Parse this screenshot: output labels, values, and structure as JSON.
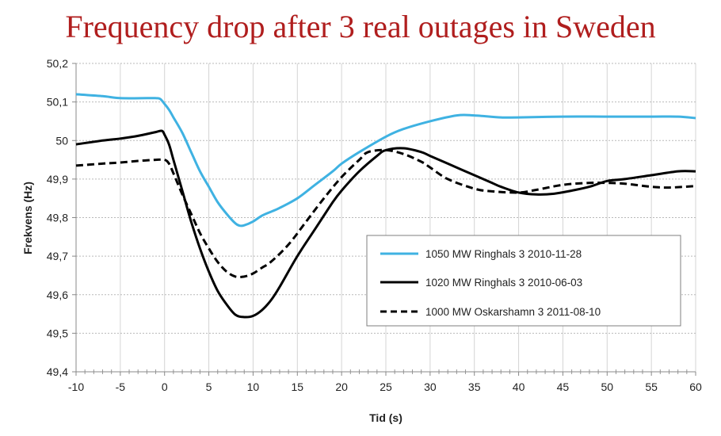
{
  "chart_data": {
    "type": "line",
    "title": "Frequency drop after 3 real outages in Sweden",
    "title_color": "#b01e1e",
    "xlabel": "Tid (s)",
    "ylabel": "Frekvens (Hz)",
    "xlim": [
      -10,
      60
    ],
    "ylim": [
      49.4,
      50.2
    ],
    "x_ticks": [
      -10,
      -5,
      0,
      5,
      10,
      15,
      20,
      25,
      30,
      35,
      40,
      45,
      50,
      55,
      60
    ],
    "x_tick_labels": [
      "-10",
      "-5",
      "0",
      "5",
      "10",
      "15",
      "20",
      "25",
      "30",
      "35",
      "40",
      "45",
      "50",
      "55",
      "60"
    ],
    "y_ticks": [
      49.4,
      49.5,
      49.6,
      49.7,
      49.8,
      49.9,
      50.0,
      50.1,
      50.2
    ],
    "y_tick_labels": [
      "49,4",
      "49,5",
      "49,6",
      "49,7",
      "49,8",
      "49,9",
      "50",
      "50,1",
      "50,2"
    ],
    "grid": true,
    "legend_position": "lower-right",
    "series": [
      {
        "name": "1050 MW Ringhals 3 2010-11-28",
        "color": "#3fb2e2",
        "dash": "solid",
        "points": [
          [
            -10,
            50.12
          ],
          [
            -7,
            50.115
          ],
          [
            -5,
            50.11
          ],
          [
            -2,
            50.11
          ],
          [
            -1,
            50.11
          ],
          [
            -0.5,
            50.108
          ],
          [
            0,
            50.095
          ],
          [
            0.5,
            50.08
          ],
          [
            1,
            50.06
          ],
          [
            2,
            50.02
          ],
          [
            3,
            49.97
          ],
          [
            4,
            49.92
          ],
          [
            5,
            49.88
          ],
          [
            6,
            49.84
          ],
          [
            7,
            49.81
          ],
          [
            8,
            49.785
          ],
          [
            8.5,
            49.779
          ],
          [
            9,
            49.78
          ],
          [
            10,
            49.79
          ],
          [
            11,
            49.805
          ],
          [
            12,
            49.815
          ],
          [
            13,
            49.825
          ],
          [
            15,
            49.85
          ],
          [
            17,
            49.885
          ],
          [
            19,
            49.92
          ],
          [
            20,
            49.94
          ],
          [
            22,
            49.97
          ],
          [
            25,
            50.01
          ],
          [
            27,
            50.03
          ],
          [
            30,
            50.05
          ],
          [
            33,
            50.065
          ],
          [
            35,
            50.065
          ],
          [
            38,
            50.06
          ],
          [
            40,
            50.06
          ],
          [
            45,
            50.062
          ],
          [
            50,
            50.062
          ],
          [
            55,
            50.062
          ],
          [
            58,
            50.062
          ],
          [
            60,
            50.058
          ]
        ]
      },
      {
        "name": "1020 MW Ringhals 3 2010-06-03",
        "color": "#000000",
        "dash": "solid",
        "points": [
          [
            -10,
            49.99
          ],
          [
            -7,
            50.0
          ],
          [
            -5,
            50.005
          ],
          [
            -3,
            50.012
          ],
          [
            -1,
            50.022
          ],
          [
            -0.3,
            50.025
          ],
          [
            0,
            50.015
          ],
          [
            0.5,
            49.99
          ],
          [
            1,
            49.95
          ],
          [
            2,
            49.87
          ],
          [
            3,
            49.79
          ],
          [
            4,
            49.72
          ],
          [
            5,
            49.66
          ],
          [
            6,
            49.61
          ],
          [
            7,
            49.575
          ],
          [
            8,
            49.548
          ],
          [
            9,
            49.542
          ],
          [
            10,
            49.545
          ],
          [
            11,
            49.56
          ],
          [
            12,
            49.585
          ],
          [
            13,
            49.62
          ],
          [
            15,
            49.7
          ],
          [
            17,
            49.77
          ],
          [
            19,
            49.84
          ],
          [
            20,
            49.87
          ],
          [
            22,
            49.92
          ],
          [
            24,
            49.96
          ],
          [
            25,
            49.975
          ],
          [
            27,
            49.98
          ],
          [
            29,
            49.97
          ],
          [
            30,
            49.96
          ],
          [
            32,
            49.94
          ],
          [
            35,
            49.91
          ],
          [
            37,
            49.89
          ],
          [
            38,
            49.88
          ],
          [
            40,
            49.865
          ],
          [
            42,
            49.86
          ],
          [
            44,
            49.862
          ],
          [
            46,
            49.87
          ],
          [
            48,
            49.88
          ],
          [
            50,
            49.895
          ],
          [
            52,
            49.9
          ],
          [
            55,
            49.91
          ],
          [
            58,
            49.92
          ],
          [
            60,
            49.92
          ]
        ]
      },
      {
        "name": "1000 MW Oskarshamn 3 2011-08-10",
        "color": "#000000",
        "dash": "dashed",
        "points": [
          [
            -10,
            49.935
          ],
          [
            -7,
            49.94
          ],
          [
            -5,
            49.943
          ],
          [
            -3,
            49.947
          ],
          [
            -1,
            49.95
          ],
          [
            0,
            49.95
          ],
          [
            0.5,
            49.94
          ],
          [
            1,
            49.915
          ],
          [
            2,
            49.86
          ],
          [
            3,
            49.81
          ],
          [
            4,
            49.76
          ],
          [
            5,
            49.72
          ],
          [
            6,
            49.685
          ],
          [
            7,
            49.66
          ],
          [
            8,
            49.647
          ],
          [
            9,
            49.647
          ],
          [
            10,
            49.655
          ],
          [
            11,
            49.67
          ],
          [
            12,
            49.685
          ],
          [
            14,
            49.73
          ],
          [
            16,
            49.79
          ],
          [
            18,
            49.85
          ],
          [
            20,
            49.905
          ],
          [
            22,
            49.95
          ],
          [
            23,
            49.97
          ],
          [
            25,
            49.975
          ],
          [
            27,
            49.965
          ],
          [
            29,
            49.945
          ],
          [
            30,
            49.93
          ],
          [
            32,
            49.9
          ],
          [
            35,
            49.875
          ],
          [
            37,
            49.868
          ],
          [
            40,
            49.865
          ],
          [
            42,
            49.872
          ],
          [
            45,
            49.885
          ],
          [
            48,
            49.89
          ],
          [
            50,
            49.89
          ],
          [
            52,
            49.888
          ],
          [
            55,
            49.88
          ],
          [
            57,
            49.878
          ],
          [
            60,
            49.882
          ]
        ]
      }
    ]
  }
}
